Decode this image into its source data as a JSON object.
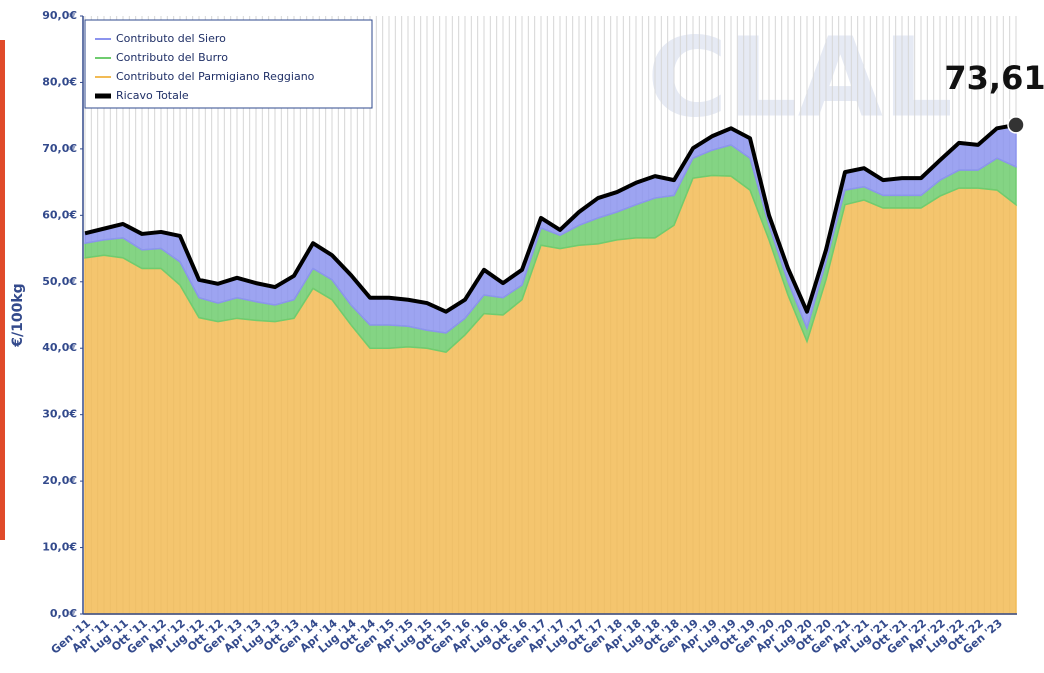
{
  "chart_data": {
    "type": "stacked_area",
    "y_label": "€/100kg",
    "watermark": "CLAL",
    "annotation": "73,61",
    "categories": [
      "Gen '11",
      "Apr '11",
      "Lug '11",
      "Ott '11",
      "Gen '12",
      "Apr '12",
      "Lug '12",
      "Ott '12",
      "Gen '13",
      "Apr '13",
      "Lug '13",
      "Ott '13",
      "Gen '14",
      "Apr '14",
      "Lug '14",
      "Ott '14",
      "Gen '15",
      "Apr '15",
      "Lug '15",
      "Ott '15",
      "Gen '16",
      "Apr '16",
      "Lug '16",
      "Ott '16",
      "Gen '17",
      "Apr '17",
      "Lug '17",
      "Ott '17",
      "Gen '18",
      "Apr '18",
      "Lug '18",
      "Ott '18",
      "Gen '19",
      "Apr '19",
      "Lug '19",
      "Ott '19",
      "Gen '20",
      "Apr '20",
      "Lug '20",
      "Ott '20",
      "Gen '21",
      "Apr '21",
      "Lug '21",
      "Ott '21",
      "Gen '22",
      "Apr '22",
      "Lug '22",
      "Ott '22",
      "Gen '23",
      null
    ],
    "series": [
      {
        "name": "Contributo del Siero",
        "color": "#8c94ee",
        "stack": true,
        "values": [
          1.5,
          1.7,
          2.1,
          2.4,
          2.5,
          3.9,
          2.7,
          2.9,
          3,
          2.8,
          2.7,
          3.6,
          3.8,
          3.7,
          4.5,
          4.1,
          4.1,
          4,
          4.1,
          3.2,
          2.8,
          3.8,
          2.2,
          2.3,
          1.5,
          0.8,
          2,
          3,
          3,
          3.3,
          3.3,
          2.3,
          1.5,
          2.1,
          2.5,
          3,
          1.5,
          2,
          2.5,
          1.8,
          2.7,
          2.8,
          2.3,
          2.6,
          2.6,
          3,
          4.1,
          3.8,
          4.5,
          6.31
        ]
      },
      {
        "name": "Contributo del Burro",
        "color": "#6fcc6f",
        "stack": true,
        "values": [
          2.2,
          2.3,
          3,
          2.8,
          3,
          3.5,
          3,
          2.8,
          3.1,
          2.8,
          2.5,
          2.8,
          3,
          3,
          3,
          3.5,
          3.5,
          3.1,
          2.7,
          2.9,
          2.5,
          2.8,
          2.6,
          2.2,
          2.6,
          2,
          3,
          3.9,
          4.2,
          5,
          6,
          4.5,
          3,
          3.8,
          4.7,
          4.8,
          2.2,
          2,
          2,
          2.7,
          2.2,
          2,
          1.9,
          1.9,
          1.9,
          2.4,
          2.7,
          2.7,
          4.8,
          5.7
        ]
      },
      {
        "name": "Contributo del Parmigiano Reggiano",
        "color": "#f2bb55",
        "stack": true,
        "values": [
          53.6,
          54,
          53.6,
          52,
          52,
          49.5,
          44.6,
          44,
          44.5,
          44.2,
          44,
          44.5,
          49,
          47.3,
          43.5,
          40,
          40,
          40.2,
          40,
          39.4,
          42,
          45.2,
          45,
          47.3,
          55.5,
          55,
          55.5,
          55.7,
          56.3,
          56.6,
          56.6,
          58.5,
          65.6,
          66,
          65.9,
          63.8,
          56.3,
          48,
          41,
          50.3,
          61.6,
          62.3,
          61.1,
          61.1,
          61.1,
          62.9,
          64.1,
          64.1,
          63.8,
          61.6
        ]
      },
      {
        "name": "Ricavo Totale",
        "color": "#000000",
        "stack": false,
        "values": [
          57.3,
          58,
          58.7,
          57.2,
          57.5,
          56.9,
          50.3,
          49.7,
          50.6,
          49.8,
          49.2,
          50.9,
          55.8,
          54,
          51,
          47.6,
          47.6,
          47.3,
          46.8,
          45.5,
          47.3,
          51.8,
          49.8,
          51.8,
          59.6,
          57.8,
          60.5,
          62.6,
          63.5,
          64.9,
          65.9,
          65.3,
          70.1,
          71.9,
          73.1,
          71.6,
          60,
          52,
          45.5,
          54.8,
          66.5,
          67.1,
          65.3,
          65.6,
          65.6,
          68.3,
          70.9,
          70.6,
          73.1,
          73.61
        ]
      }
    ],
    "ylim": [
      0,
      90
    ],
    "yticks": [
      {
        "value": 0,
        "label": "0,0€"
      },
      {
        "value": 10,
        "label": "10,0€"
      },
      {
        "value": 20,
        "label": "20,0€"
      },
      {
        "value": 30,
        "label": "30,0€"
      },
      {
        "value": 40,
        "label": "40,0€"
      },
      {
        "value": 50,
        "label": "50,0€"
      },
      {
        "value": 60,
        "label": "60,0€"
      },
      {
        "value": 70,
        "label": "70,0€"
      },
      {
        "value": 80,
        "label": "80,0€"
      },
      {
        "value": 90,
        "label": "90,0€"
      }
    ],
    "grid": "x",
    "legend": "upper left"
  }
}
